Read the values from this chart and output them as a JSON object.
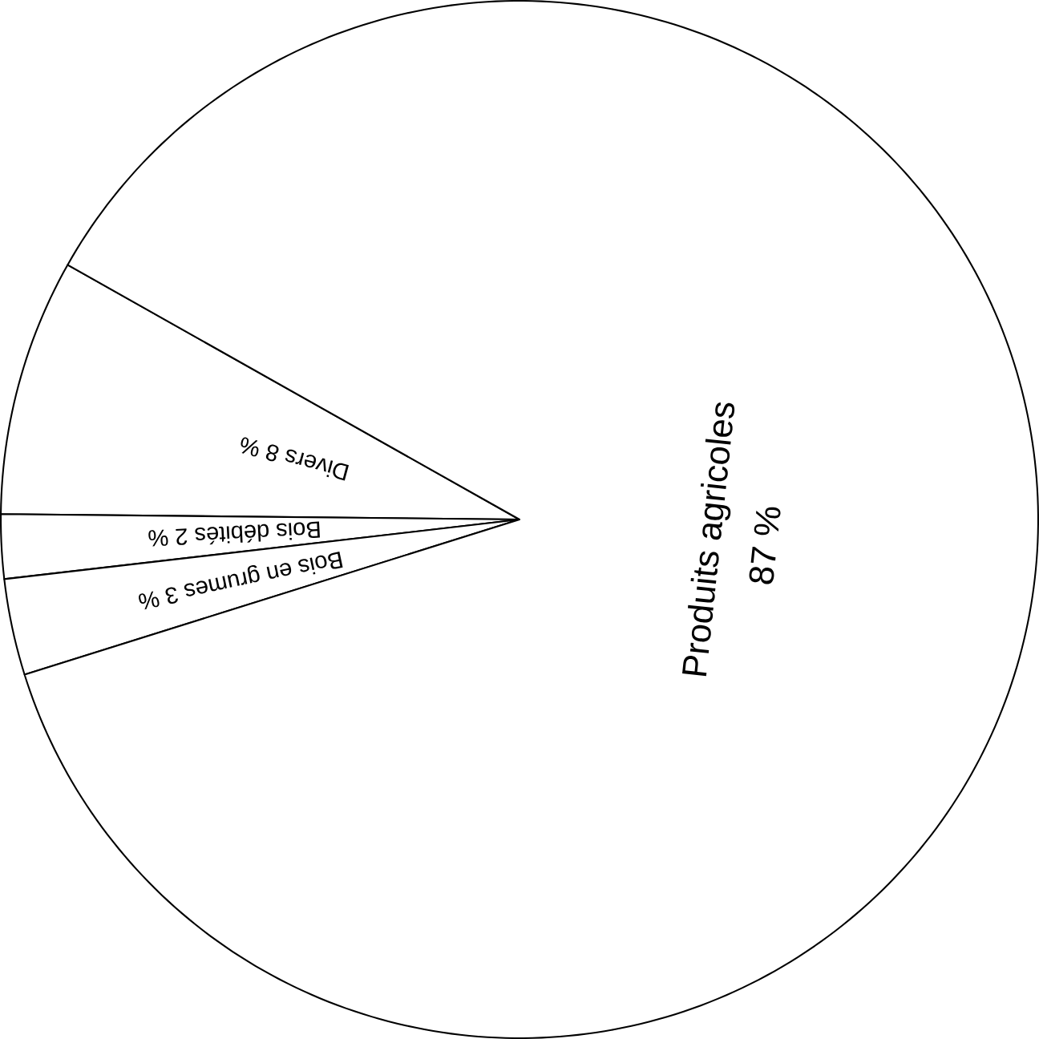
{
  "chart_data": {
    "type": "pie",
    "categories": [
      "Divers",
      "Bois débités",
      "Bois en grumes",
      "Produits agricoles"
    ],
    "values": [
      8,
      2,
      3,
      87
    ],
    "value_labels": [
      "8 %",
      "2 %",
      "3 %",
      "87 %"
    ],
    "colors": [
      "#ffffff",
      "#ffffff",
      "#ffffff",
      "#ffffff"
    ]
  }
}
